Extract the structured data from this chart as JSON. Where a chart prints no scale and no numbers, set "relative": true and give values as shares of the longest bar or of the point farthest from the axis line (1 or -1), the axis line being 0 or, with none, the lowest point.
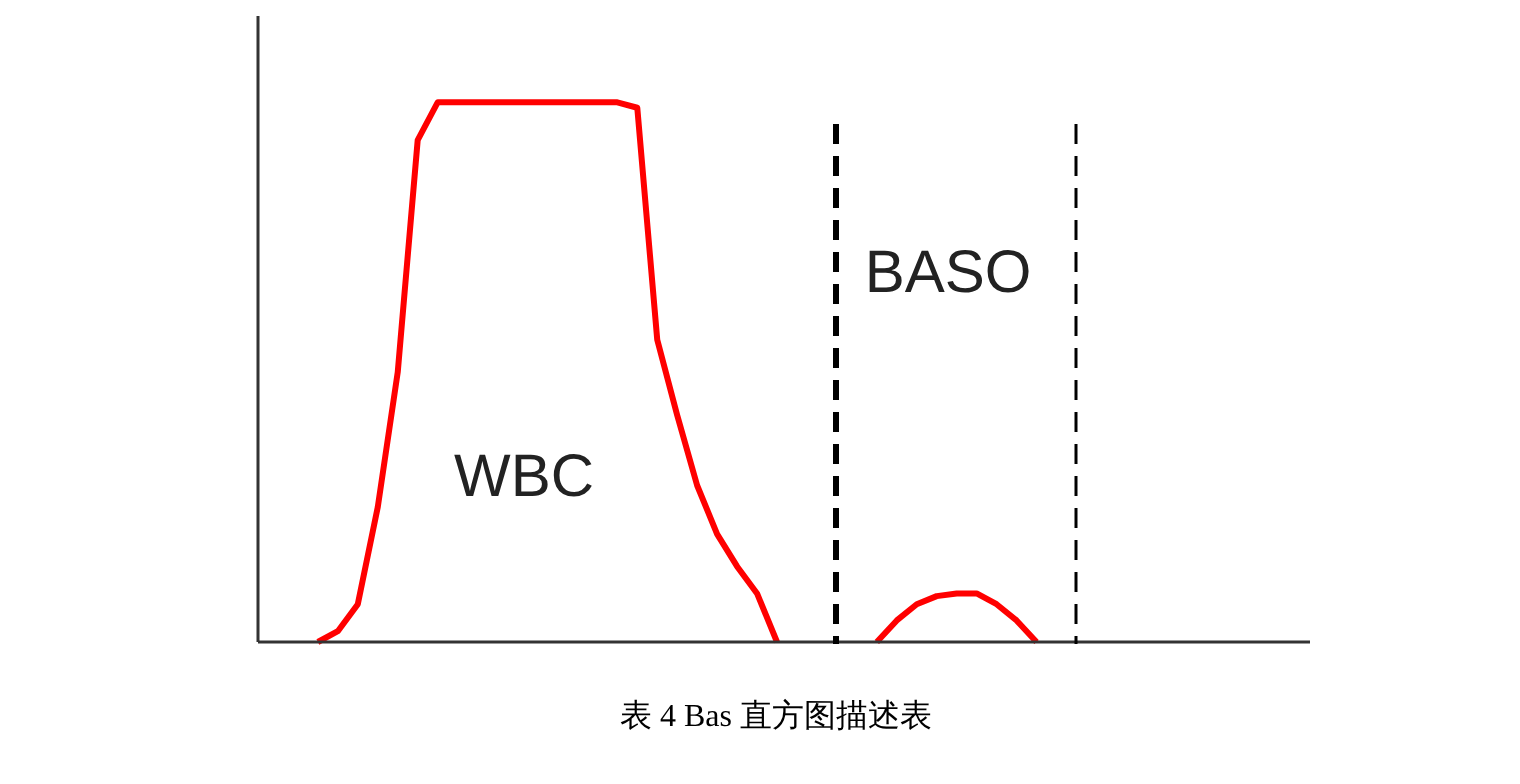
{
  "chart_data": {
    "type": "line",
    "title": "表 4  Bas 直方图描述表",
    "relative": true,
    "tick_labels": false,
    "marker": "none",
    "line_style": "solid",
    "categories": [
      null,
      null,
      null,
      null,
      null,
      null,
      null,
      null,
      null,
      null,
      null,
      null,
      null,
      null,
      null,
      null,
      null,
      null,
      null,
      null,
      null,
      null,
      null,
      null,
      null,
      null,
      null,
      null,
      null,
      null,
      null,
      null,
      null,
      null,
      null,
      null,
      null,
      null,
      null,
      null,
      null,
      null,
      null,
      null,
      null,
      null,
      null,
      null,
      null,
      null,
      null,
      null,
      null
    ],
    "series": [
      {
        "color": "#ff0000",
        "values": [
          null,
          null,
          null,
          0,
          0.02,
          0.07,
          0.25,
          0.5,
          0.93,
          1,
          1,
          1,
          1,
          1,
          1,
          1,
          1,
          1,
          1,
          0.99,
          0.56,
          0.42,
          0.29,
          0.2,
          0.14,
          0.09,
          0,
          null,
          null,
          null,
          null,
          null,
          null,
          null,
          null,
          null,
          null,
          null,
          null,
          null,
          null,
          null,
          null,
          null,
          null,
          null,
          null,
          null,
          null,
          null,
          null,
          null,
          null
        ]
      },
      {
        "color": "#ff0000",
        "values": [
          null,
          null,
          null,
          null,
          null,
          null,
          null,
          null,
          null,
          null,
          null,
          null,
          null,
          null,
          null,
          null,
          null,
          null,
          null,
          null,
          null,
          null,
          null,
          null,
          null,
          null,
          null,
          null,
          null,
          null,
          null,
          0,
          0.04,
          0.07,
          0.085,
          0.09,
          0.09,
          0.07,
          0.04,
          0,
          null,
          null,
          null,
          null,
          null,
          null,
          null,
          null,
          null,
          null,
          null,
          null,
          null
        ]
      }
    ],
    "annotations": [
      "WBC",
      "BASO"
    ]
  }
}
